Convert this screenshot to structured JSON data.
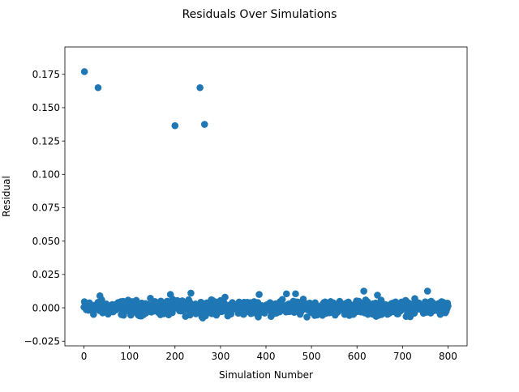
{
  "chart_data": {
    "type": "scatter",
    "title": "Residuals Over Simulations",
    "xlabel": "Simulation Number",
    "ylabel": "Residual",
    "xlim": [
      -42,
      842
    ],
    "ylim": [
      -0.0285,
      0.1955
    ],
    "xticks": [
      0,
      100,
      200,
      300,
      400,
      500,
      600,
      700,
      800
    ],
    "xtick_labels": [
      "0",
      "100",
      "200",
      "300",
      "400",
      "500",
      "600",
      "700",
      "800"
    ],
    "yticks": [
      -0.025,
      0,
      0.025,
      0.05,
      0.075,
      0.1,
      0.125,
      0.15,
      0.175
    ],
    "ytick_labels": [
      "−0.025",
      "0.000",
      "0.025",
      "0.050",
      "0.075",
      "0.100",
      "0.125",
      "0.150",
      "0.175"
    ],
    "grid": false,
    "marker_color": "#1f77b4",
    "outliers": [
      {
        "x": 1,
        "y": 0.177
      },
      {
        "x": 31,
        "y": 0.165
      },
      {
        "x": 200,
        "y": 0.1365
      },
      {
        "x": 255,
        "y": 0.165
      },
      {
        "x": 265,
        "y": 0.1375
      }
    ],
    "bulk_series": {
      "x_start": 0,
      "x_end": 800,
      "count": 801,
      "y_min": -0.011,
      "y_max": 0.013
    },
    "notable_points": [
      {
        "x": 5,
        "y": 0.002
      },
      {
        "x": 35,
        "y": 0.009
      },
      {
        "x": 190,
        "y": 0.01
      },
      {
        "x": 235,
        "y": 0.011
      },
      {
        "x": 310,
        "y": 0.008
      },
      {
        "x": 385,
        "y": 0.01
      },
      {
        "x": 445,
        "y": 0.0105
      },
      {
        "x": 465,
        "y": 0.0105
      },
      {
        "x": 615,
        "y": 0.0125
      },
      {
        "x": 645,
        "y": 0.0095
      },
      {
        "x": 755,
        "y": 0.0125
      }
    ]
  }
}
